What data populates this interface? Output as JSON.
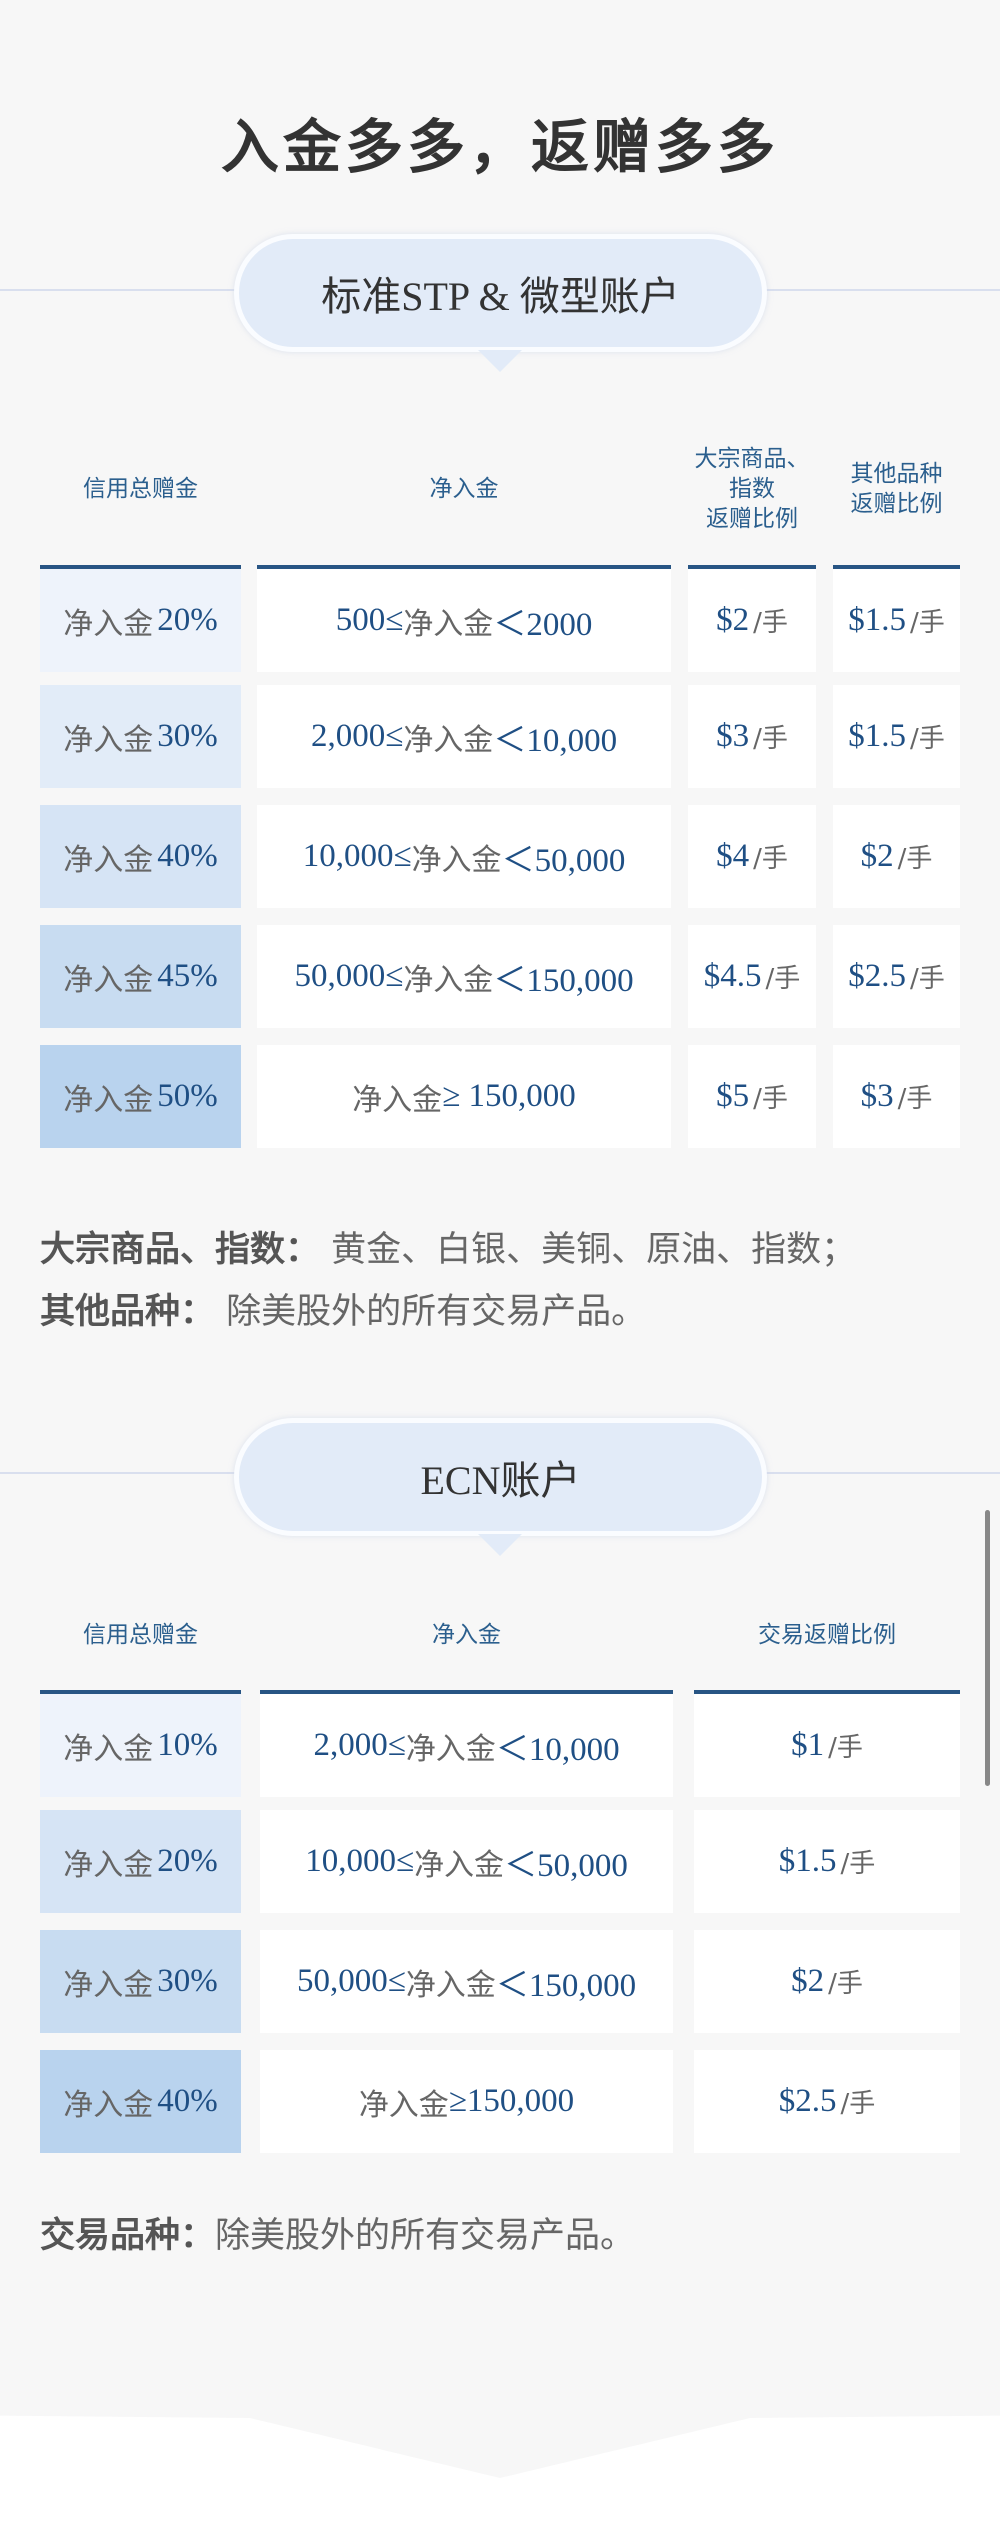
{
  "title": "入金多多，返赠多多",
  "stp": {
    "badge": "标准STP & 微型账户",
    "headers": [
      "信用总赠金",
      "净入金",
      "大宗商品、\n指数\n返赠比例",
      "其他品种\n返赠比例"
    ],
    "rows": [
      {
        "label": "净入金",
        "pct": "20%",
        "pre": "500≤",
        "mid": "净入金",
        "post": " ＜2000",
        "a": "$2",
        "b": "$1.5",
        "unit": "/手"
      },
      {
        "label": "净入金",
        "pct": "30%",
        "pre": "2,000≤",
        "mid": "净入金",
        "post": " ＜10,000",
        "a": "$3",
        "b": "$1.5",
        "unit": "/手"
      },
      {
        "label": "净入金",
        "pct": "40%",
        "pre": "10,000≤",
        "mid": "净入金",
        "post": " ＜50,000",
        "a": "$4",
        "b": "$2",
        "unit": "/手"
      },
      {
        "label": "净入金",
        "pct": "45%",
        "pre": "50,000≤",
        "mid": "净入金",
        "post": " ＜150,000",
        "a": "$4.5",
        "b": "$2.5",
        "unit": "/手"
      },
      {
        "label": "净入金",
        "pct": "50%",
        "pre": "",
        "mid": "净入金",
        "post": "≥ 150,000",
        "a": "$5",
        "b": "$3",
        "unit": "/手"
      }
    ],
    "notes": [
      {
        "label": "大宗商品、指数：",
        "text": " 黄金、白银、美铜、原油、指数；"
      },
      {
        "label": "其他品种：",
        "text": " 除美股外的所有交易产品。"
      }
    ]
  },
  "ecn": {
    "badge": "ECN账户",
    "headers": [
      "信用总赠金",
      "净入金",
      "交易返赠比例"
    ],
    "rows": [
      {
        "label": "净入金",
        "pct": "10%",
        "pre": "2,000≤",
        "mid": "净入金",
        "post": " ＜10,000",
        "a": "$1",
        "unit": "/手"
      },
      {
        "label": "净入金",
        "pct": "20%",
        "pre": "10,000≤",
        "mid": "净入金",
        "post": " ＜50,000",
        "a": "$1.5",
        "unit": "/手"
      },
      {
        "label": "净入金",
        "pct": "30%",
        "pre": "50,000≤",
        "mid": "净入金",
        "post": " ＜150,000",
        "a": "$2",
        "unit": "/手"
      },
      {
        "label": "净入金",
        "pct": "40%",
        "pre": "",
        "mid": "净入金",
        "post": "≥150,000",
        "a": "$2.5",
        "unit": "/手"
      }
    ],
    "notes": [
      {
        "label": "交易品种：",
        "text": "除美股外的所有交易产品。"
      }
    ]
  },
  "colors": {
    "accent": "#285584",
    "text_blue": "#1f4f84",
    "badge_bg": "#e2ebf8"
  }
}
